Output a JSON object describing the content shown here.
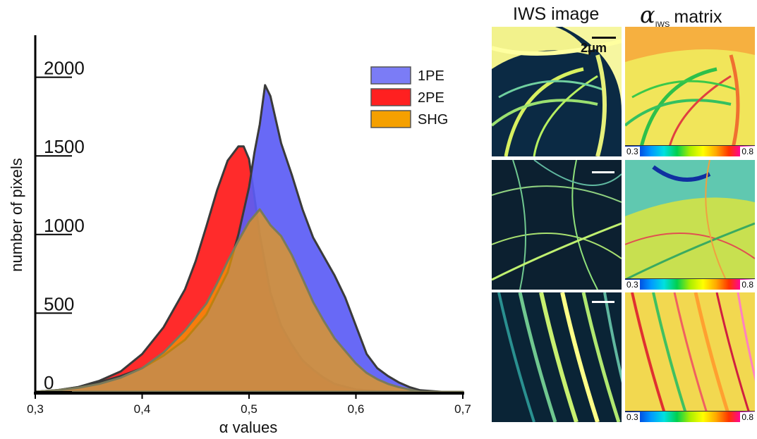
{
  "chart_data": {
    "type": "area",
    "xlabel": "α values",
    "ylabel": "number of pixels",
    "xlim": [
      0.3,
      0.7
    ],
    "ylim": [
      0,
      2200
    ],
    "x_ticks": [
      "0,3",
      "0,4",
      "0,5",
      "0,6",
      "0,7"
    ],
    "y_ticks": [
      "0",
      "500",
      "1000",
      "1500",
      "2000"
    ],
    "legend": {
      "placement": "top-right",
      "entries": [
        "1PE",
        "2PE",
        "SHG"
      ]
    },
    "series": [
      {
        "name": "1PE",
        "color": "#5b5cf5",
        "x": [
          0.3,
          0.32,
          0.34,
          0.36,
          0.38,
          0.4,
          0.42,
          0.44,
          0.46,
          0.48,
          0.49,
          0.5,
          0.505,
          0.51,
          0.515,
          0.52,
          0.53,
          0.54,
          0.55,
          0.56,
          0.57,
          0.58,
          0.59,
          0.6,
          0.61,
          0.62,
          0.63,
          0.64,
          0.65,
          0.66,
          0.68,
          0.7
        ],
        "y": [
          0,
          10,
          30,
          60,
          100,
          150,
          230,
          330,
          490,
          760,
          1000,
          1300,
          1520,
          1700,
          1950,
          1880,
          1580,
          1380,
          1160,
          980,
          860,
          740,
          600,
          420,
          240,
          150,
          100,
          60,
          30,
          10,
          0,
          0
        ]
      },
      {
        "name": "2PE",
        "color": "#ff2020",
        "x": [
          0.3,
          0.32,
          0.34,
          0.36,
          0.38,
          0.4,
          0.42,
          0.44,
          0.45,
          0.46,
          0.47,
          0.48,
          0.49,
          0.495,
          0.5,
          0.51,
          0.52,
          0.53,
          0.54,
          0.55,
          0.56,
          0.57,
          0.58,
          0.6,
          0.62,
          0.64,
          0.7
        ],
        "y": [
          0,
          10,
          30,
          70,
          130,
          240,
          410,
          650,
          830,
          1050,
          1280,
          1470,
          1560,
          1560,
          1480,
          1000,
          630,
          420,
          300,
          200,
          140,
          90,
          50,
          15,
          5,
          0,
          0
        ]
      },
      {
        "name": "SHG",
        "color": "#f5a000",
        "x": [
          0.3,
          0.32,
          0.34,
          0.36,
          0.38,
          0.4,
          0.42,
          0.44,
          0.46,
          0.47,
          0.48,
          0.49,
          0.5,
          0.51,
          0.52,
          0.53,
          0.54,
          0.55,
          0.56,
          0.57,
          0.58,
          0.59,
          0.6,
          0.61,
          0.62,
          0.63,
          0.64,
          0.65,
          0.66,
          0.7
        ],
        "y": [
          0,
          10,
          25,
          50,
          90,
          150,
          250,
          390,
          560,
          690,
          830,
          960,
          1080,
          1160,
          1060,
          990,
          870,
          720,
          570,
          450,
          340,
          260,
          180,
          120,
          80,
          50,
          30,
          15,
          0,
          0
        ]
      }
    ]
  },
  "panels": {
    "title_iws": "IWS image",
    "title_alpha_symbol": "α",
    "title_alpha_sub": "IWS",
    "title_alpha_word": "matrix",
    "scale_label": "2μm",
    "colorbar_min": "0.3",
    "colorbar_max": "0.8"
  }
}
